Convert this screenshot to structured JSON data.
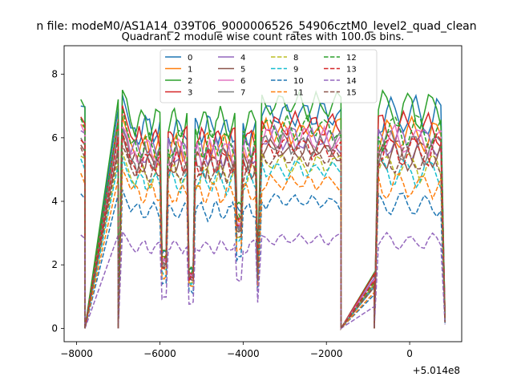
{
  "figure": {
    "suptitle": "n file: modeM0/AS1A14_039T06_9000006526_54906cztM0_level2_quad_clean",
    "offset_text": "+5.014e8"
  },
  "chart_data": {
    "type": "line",
    "title": "Quadrant 2 module wise count rates with 100.0s bins.",
    "xlabel": "",
    "ylabel": "",
    "xlim": [
      -8300,
      1250
    ],
    "ylim": [
      -0.42,
      8.9
    ],
    "x_offset": 501400000,
    "x_ticks": [
      -8000,
      -6000,
      -4000,
      -2000,
      0
    ],
    "x_tick_labels": [
      "−8000",
      "−6000",
      "−4000",
      "−2000",
      "0"
    ],
    "y_ticks": [
      0,
      2,
      4,
      6,
      8
    ],
    "y_tick_labels": [
      "0",
      "2",
      "4",
      "6",
      "8"
    ],
    "legend": {
      "placement": "top-center",
      "columns": 4
    },
    "segments": [
      {
        "start": -7900,
        "end": -7800,
        "step": 100
      },
      {
        "start": -7000,
        "end": -6600,
        "step": 100
      },
      {
        "start": -6600,
        "end": -3650,
        "step": 50
      },
      {
        "start": -3650,
        "end": -1650,
        "step": 100
      },
      {
        "start": -850,
        "end": 850,
        "step": 100
      }
    ],
    "baseline_shape": "segment-wise count rate profile sampled every 100 s (50 s within the central orbit); dips near -5900, -5250, -3650; zero during SAA gaps",
    "series": [
      {
        "name": "0",
        "color": "#1f77b4",
        "dash": "solid",
        "level": 6.8
      },
      {
        "name": "1",
        "color": "#ff7f0e",
        "dash": "solid",
        "level": 6.2
      },
      {
        "name": "2",
        "color": "#2ca02c",
        "dash": "solid",
        "level": 7.0
      },
      {
        "name": "3",
        "color": "#d62728",
        "dash": "solid",
        "level": 6.4
      },
      {
        "name": "4",
        "color": "#9467bd",
        "dash": "solid",
        "level": 6.0
      },
      {
        "name": "5",
        "color": "#8c564b",
        "dash": "solid",
        "level": 5.6
      },
      {
        "name": "6",
        "color": "#e377c2",
        "dash": "solid",
        "level": 6.0
      },
      {
        "name": "7",
        "color": "#7f7f7f",
        "dash": "solid",
        "level": 5.8
      },
      {
        "name": "8",
        "color": "#bcbd22",
        "dash": "dashed",
        "level": 5.2
      },
      {
        "name": "9",
        "color": "#17becf",
        "dash": "dashed",
        "level": 5.0
      },
      {
        "name": "10",
        "color": "#1f77b4",
        "dash": "dashed",
        "level": 4.0
      },
      {
        "name": "11",
        "color": "#ff7f0e",
        "dash": "dashed",
        "level": 4.6
      },
      {
        "name": "12",
        "color": "#2ca02c",
        "dash": "dashed",
        "level": 6.3
      },
      {
        "name": "13",
        "color": "#d62728",
        "dash": "dashed",
        "level": 5.7
      },
      {
        "name": "14",
        "color": "#9467bd",
        "dash": "dashed",
        "level": 2.8
      },
      {
        "name": "15",
        "color": "#8c564b",
        "dash": "dashed",
        "level": 5.4
      }
    ]
  }
}
